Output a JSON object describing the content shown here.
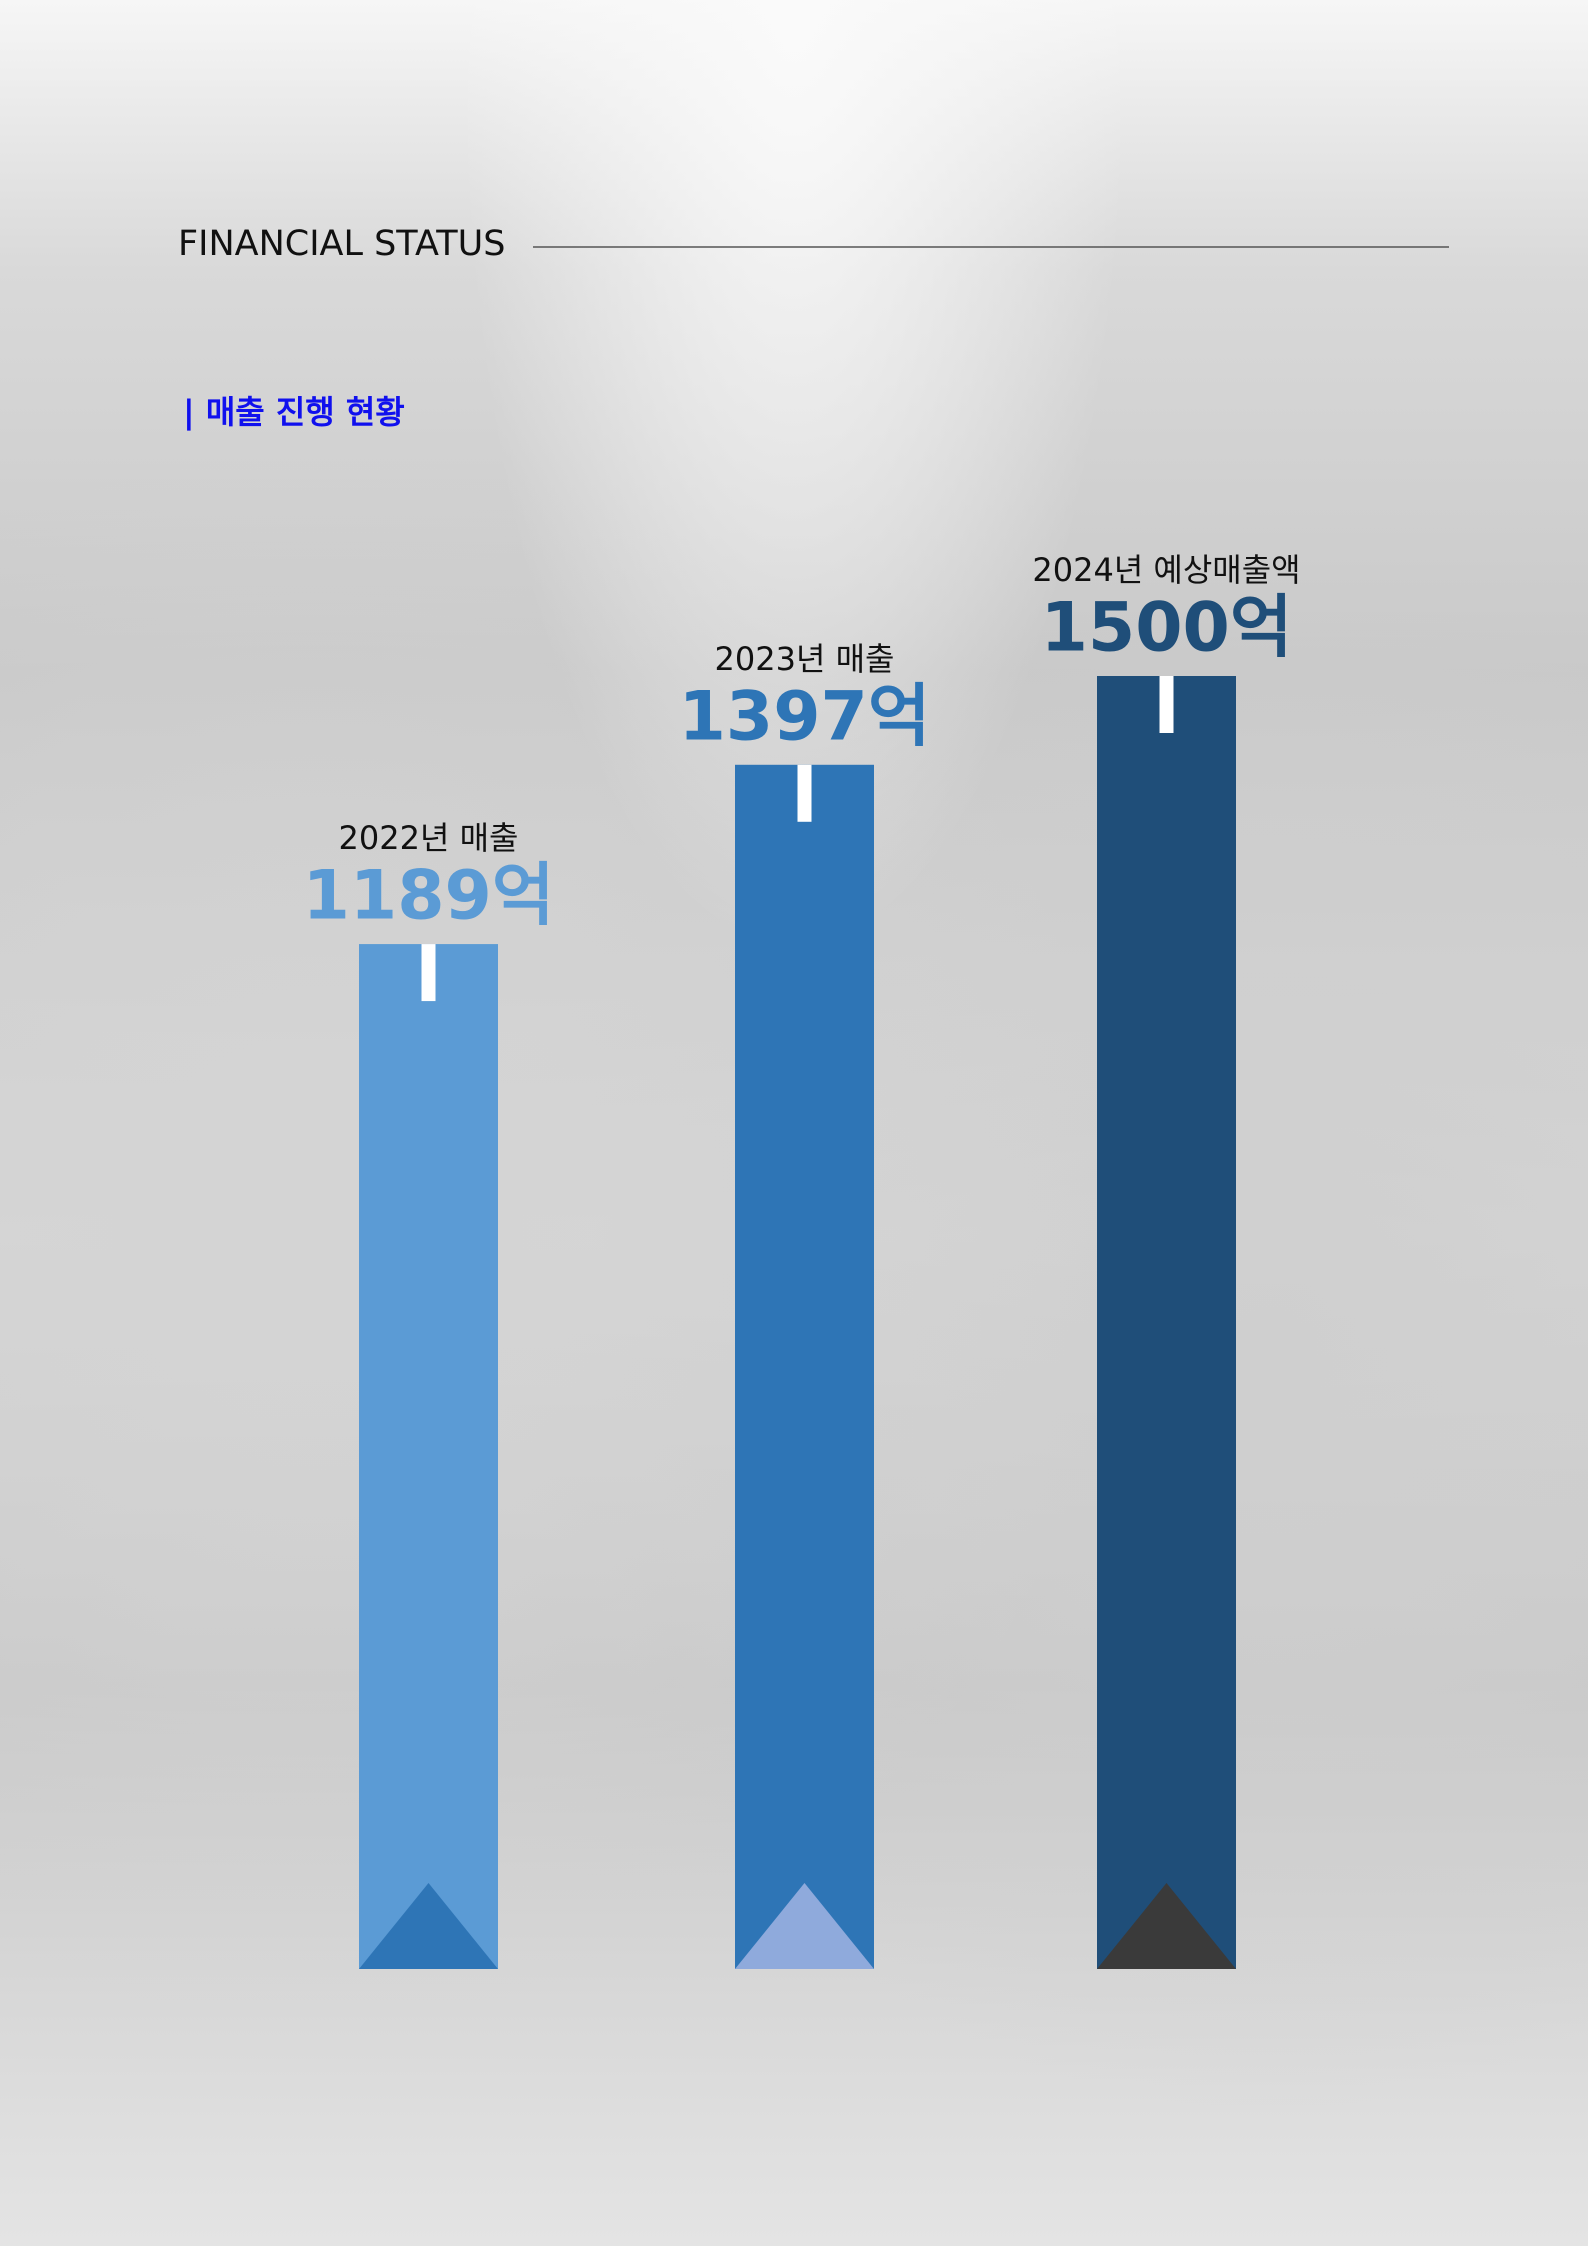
{
  "chart_data": {
    "type": "bar",
    "title": "FINANCIAL STATUS",
    "subtitle": "| 매출 진행 현황",
    "categories": [
      "2022년 매출",
      "2023년 매출",
      "2024년 예상매출액"
    ],
    "values": [
      1189,
      1397,
      1500
    ],
    "value_labels": [
      "1189억",
      "1397억",
      "1500억"
    ],
    "colors": [
      "#5b9bd5",
      "#2e75b6",
      "#1f4e79"
    ],
    "accent_colors": [
      "#2e75b6",
      "#8faadc",
      "#3a3a3a"
    ]
  }
}
